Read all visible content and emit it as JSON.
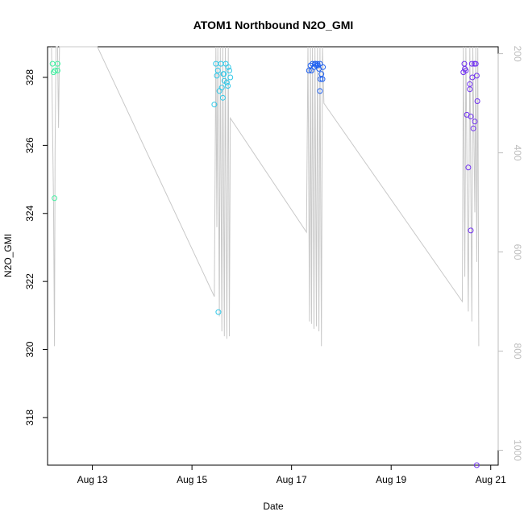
{
  "chart_data": {
    "type": "scatter",
    "title": "ATOM1 Northbound N2O_GMI",
    "xlabel": "Date",
    "ylabel": "N2O_GMI",
    "xlim": [
      12.1,
      21.15
    ],
    "ylim": [
      316.6,
      328.9
    ],
    "x_ticks": [
      {
        "value": 13,
        "label": "Aug 13"
      },
      {
        "value": 15,
        "label": "Aug 15"
      },
      {
        "value": 17,
        "label": "Aug 17"
      },
      {
        "value": 19,
        "label": "Aug 19"
      },
      {
        "value": 21,
        "label": "Aug 21"
      }
    ],
    "y_ticks": [
      318,
      320,
      322,
      324,
      326,
      328
    ],
    "right_axis": {
      "description": "pressure (gray line)",
      "reversed": true,
      "lim": [
        186,
        1030
      ],
      "ticks": [
        200,
        400,
        600,
        800,
        1000
      ],
      "color": "#bdbdbd"
    },
    "series": [
      {
        "color": "#40f0a0",
        "points": [
          [
            12.2,
            328.4
          ],
          [
            12.25,
            328.2
          ],
          [
            12.3,
            328.4
          ],
          [
            12.22,
            328.15
          ],
          [
            12.3,
            328.2
          ],
          [
            12.24,
            324.45
          ]
        ]
      },
      {
        "color": "#30c8e8",
        "points": [
          [
            15.45,
            327.2
          ],
          [
            15.48,
            328.4
          ],
          [
            15.5,
            328.05
          ],
          [
            15.52,
            328.2
          ],
          [
            15.55,
            327.6
          ],
          [
            15.58,
            328.4
          ],
          [
            15.6,
            327.7
          ],
          [
            15.62,
            327.4
          ],
          [
            15.63,
            328.1
          ],
          [
            15.65,
            327.9
          ],
          [
            15.68,
            328.4
          ],
          [
            15.7,
            327.85
          ],
          [
            15.72,
            327.75
          ],
          [
            15.75,
            328.2
          ],
          [
            15.77,
            328.0
          ],
          [
            15.53,
            321.1
          ],
          [
            15.64,
            328.1
          ],
          [
            15.73,
            328.3
          ]
        ]
      },
      {
        "color": "#1e60f0",
        "points": [
          [
            17.35,
            328.2
          ],
          [
            17.38,
            328.35
          ],
          [
            17.4,
            328.2
          ],
          [
            17.42,
            328.4
          ],
          [
            17.45,
            328.3
          ],
          [
            17.47,
            328.4
          ],
          [
            17.5,
            328.35
          ],
          [
            17.52,
            328.4
          ],
          [
            17.55,
            328.25
          ],
          [
            17.57,
            328.4
          ],
          [
            17.58,
            327.95
          ],
          [
            17.6,
            328.1
          ],
          [
            17.62,
            327.95
          ],
          [
            17.63,
            328.3
          ],
          [
            17.57,
            327.6
          ],
          [
            17.48,
            328.4
          ],
          [
            17.53,
            328.35
          ]
        ]
      },
      {
        "color": "#7030f0",
        "points": [
          [
            20.45,
            328.15
          ],
          [
            20.47,
            328.4
          ],
          [
            20.5,
            328.2
          ],
          [
            20.52,
            326.9
          ],
          [
            20.55,
            325.35
          ],
          [
            20.58,
            327.8
          ],
          [
            20.6,
            326.85
          ],
          [
            20.6,
            323.5
          ],
          [
            20.62,
            328.4
          ],
          [
            20.63,
            328.0
          ],
          [
            20.65,
            326.5
          ],
          [
            20.67,
            328.4
          ],
          [
            20.68,
            326.7
          ],
          [
            20.7,
            328.4
          ],
          [
            20.72,
            328.05
          ],
          [
            20.73,
            327.3
          ],
          [
            20.72,
            316.6
          ],
          [
            20.48,
            328.25
          ],
          [
            20.58,
            327.65
          ]
        ]
      }
    ],
    "pressure_line": {
      "color": "#c8c8c8",
      "points": [
        [
          12.18,
          186
        ],
        [
          12.2,
          350
        ],
        [
          12.22,
          500
        ],
        [
          12.24,
          790
        ],
        [
          12.25,
          400
        ],
        [
          12.27,
          186
        ],
        [
          12.3,
          186
        ],
        [
          12.32,
          350
        ],
        [
          12.34,
          186
        ],
        [
          13.1,
          186
        ],
        [
          15.45,
          690
        ],
        [
          15.48,
          186
        ],
        [
          15.5,
          550
        ],
        [
          15.52,
          186
        ],
        [
          15.55,
          730
        ],
        [
          15.57,
          186
        ],
        [
          15.6,
          760
        ],
        [
          15.62,
          186
        ],
        [
          15.65,
          770
        ],
        [
          15.67,
          186
        ],
        [
          15.7,
          775
        ],
        [
          15.73,
          186
        ],
        [
          15.75,
          770
        ],
        [
          15.77,
          330
        ],
        [
          17.3,
          560
        ],
        [
          17.33,
          186
        ],
        [
          17.36,
          740
        ],
        [
          17.38,
          186
        ],
        [
          17.4,
          745
        ],
        [
          17.42,
          186
        ],
        [
          17.45,
          755
        ],
        [
          17.47,
          186
        ],
        [
          17.5,
          750
        ],
        [
          17.52,
          186
        ],
        [
          17.55,
          760
        ],
        [
          17.57,
          186
        ],
        [
          17.6,
          790
        ],
        [
          17.62,
          186
        ],
        [
          17.65,
          300
        ],
        [
          20.43,
          700
        ],
        [
          20.45,
          186
        ],
        [
          20.48,
          650
        ],
        [
          20.5,
          186
        ],
        [
          20.55,
          720
        ],
        [
          20.58,
          186
        ],
        [
          20.62,
          740
        ],
        [
          20.64,
          186
        ],
        [
          20.68,
          520
        ],
        [
          20.7,
          186
        ],
        [
          20.72,
          620
        ],
        [
          20.74,
          186
        ],
        [
          20.76,
          790
        ]
      ]
    }
  }
}
